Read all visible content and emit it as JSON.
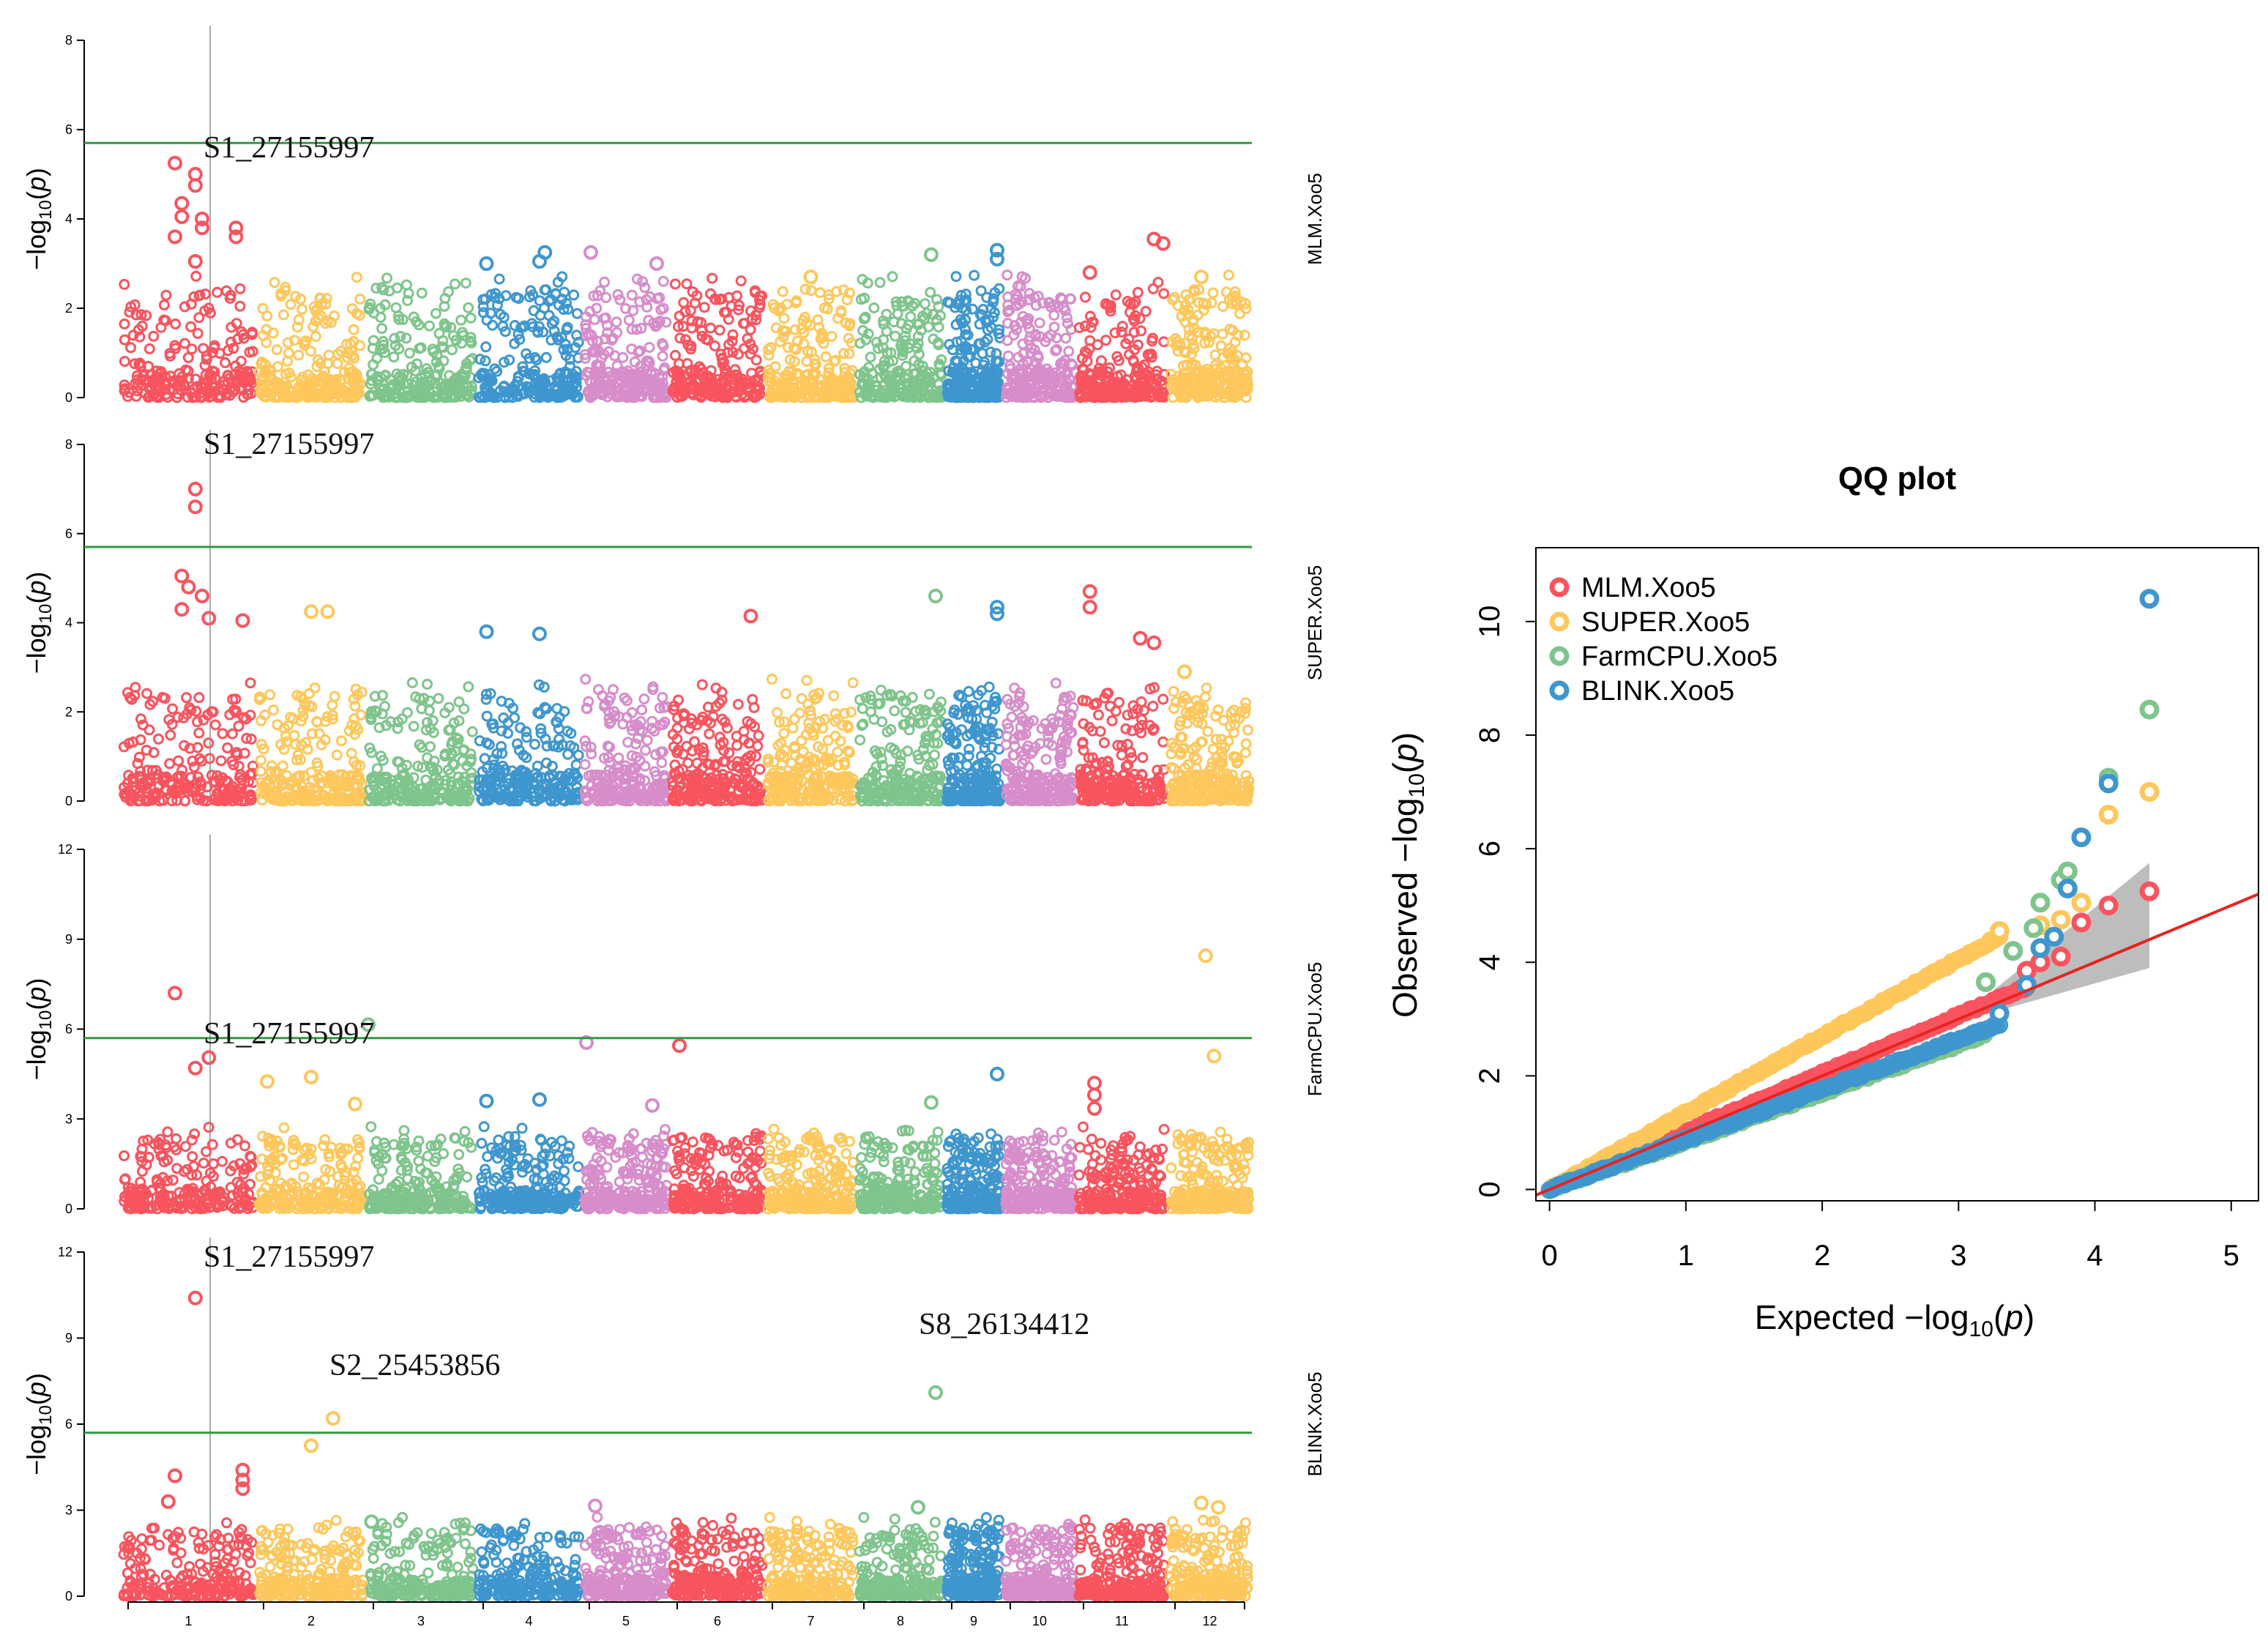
{
  "colors": {
    "chr": [
      "#F8545E",
      "#FDC75C",
      "#7FC48C",
      "#3F96CE",
      "#D68DCA",
      "#F8545E",
      "#FDC75C",
      "#7FC48C",
      "#3F96CE",
      "#D68DCA",
      "#F8545E",
      "#FDC75C"
    ],
    "threshold": "#2E9B3E",
    "highlight_line": "#AAAAAA",
    "qq_models": {
      "MLM.Xoo5": "#F8545E",
      "SUPER.Xoo5": "#FDC75C",
      "FarmCPU.Xoo5": "#7FC48C",
      "BLINK.Xoo5": "#3F96CE"
    },
    "qq_ref_line": "#E8231F",
    "qq_band": "#BDBDBD"
  },
  "chart_data": [
    {
      "type": "scatter",
      "subtype": "manhattan",
      "title": "",
      "model_label": "MLM.Xoo5",
      "ylabel": "-log10(p)",
      "yticks": [
        "0",
        "2",
        "4",
        "6",
        "8"
      ],
      "ylim": [
        0,
        8
      ],
      "threshold": 5.7,
      "highlight_snp": "S1_27155997",
      "annotations": [
        {
          "text": "S1_27155997",
          "chr": 1,
          "y": 5.25
        }
      ],
      "chromosomes": [
        "1",
        "2",
        "3",
        "4",
        "5",
        "6",
        "7",
        "8",
        "9",
        "10",
        "11",
        "12"
      ],
      "top_points": [
        {
          "chr": 1,
          "pos": 0.4,
          "y": 5.25
        },
        {
          "chr": 1,
          "pos": 0.55,
          "y": 5.0
        },
        {
          "chr": 1,
          "pos": 0.55,
          "y": 4.75
        },
        {
          "chr": 1,
          "pos": 0.45,
          "y": 4.35
        },
        {
          "chr": 1,
          "pos": 0.45,
          "y": 4.05
        },
        {
          "chr": 1,
          "pos": 0.6,
          "y": 4.0
        },
        {
          "chr": 1,
          "pos": 0.6,
          "y": 3.8
        },
        {
          "chr": 1,
          "pos": 0.85,
          "y": 3.8
        },
        {
          "chr": 1,
          "pos": 0.85,
          "y": 3.6
        },
        {
          "chr": 1,
          "pos": 0.4,
          "y": 3.6
        },
        {
          "chr": 1,
          "pos": 0.55,
          "y": 3.05
        },
        {
          "chr": 4,
          "pos": 0.65,
          "y": 3.25
        },
        {
          "chr": 4,
          "pos": 0.6,
          "y": 3.05
        },
        {
          "chr": 4,
          "pos": 0.1,
          "y": 3.0
        },
        {
          "chr": 5,
          "pos": 0.1,
          "y": 3.25
        },
        {
          "chr": 5,
          "pos": 0.85,
          "y": 3.0
        },
        {
          "chr": 9,
          "pos": 0.9,
          "y": 3.3
        },
        {
          "chr": 9,
          "pos": 0.9,
          "y": 3.1
        },
        {
          "chr": 8,
          "pos": 0.85,
          "y": 3.2
        },
        {
          "chr": 11,
          "pos": 0.85,
          "y": 3.55
        },
        {
          "chr": 11,
          "pos": 0.95,
          "y": 3.45
        },
        {
          "chr": 11,
          "pos": 0.15,
          "y": 2.8
        },
        {
          "chr": 7,
          "pos": 0.5,
          "y": 2.7
        },
        {
          "chr": 12,
          "pos": 0.4,
          "y": 2.7
        }
      ]
    },
    {
      "type": "scatter",
      "subtype": "manhattan",
      "model_label": "SUPER.Xoo5",
      "ylabel": "-log10(p)",
      "yticks": [
        "0",
        "2",
        "4",
        "6",
        "8"
      ],
      "ylim": [
        0,
        8
      ],
      "threshold": 5.7,
      "highlight_snp": "S1_27155997",
      "annotations": [
        {
          "text": "S1_27155997",
          "chr": 1,
          "y": 7.0
        }
      ],
      "chromosomes": [
        "1",
        "2",
        "3",
        "4",
        "5",
        "6",
        "7",
        "8",
        "9",
        "10",
        "11",
        "12"
      ],
      "top_points": [
        {
          "chr": 1,
          "pos": 0.55,
          "y": 7.0
        },
        {
          "chr": 1,
          "pos": 0.55,
          "y": 6.6
        },
        {
          "chr": 1,
          "pos": 0.45,
          "y": 5.05
        },
        {
          "chr": 1,
          "pos": 0.5,
          "y": 4.8
        },
        {
          "chr": 1,
          "pos": 0.6,
          "y": 4.6
        },
        {
          "chr": 1,
          "pos": 0.45,
          "y": 4.3
        },
        {
          "chr": 1,
          "pos": 0.65,
          "y": 4.1
        },
        {
          "chr": 1,
          "pos": 0.9,
          "y": 4.05
        },
        {
          "chr": 2,
          "pos": 0.5,
          "y": 4.25
        },
        {
          "chr": 2,
          "pos": 0.65,
          "y": 4.25
        },
        {
          "chr": 4,
          "pos": 0.1,
          "y": 3.8
        },
        {
          "chr": 4,
          "pos": 0.6,
          "y": 3.75
        },
        {
          "chr": 8,
          "pos": 0.9,
          "y": 4.6
        },
        {
          "chr": 9,
          "pos": 0.9,
          "y": 4.35
        },
        {
          "chr": 9,
          "pos": 0.9,
          "y": 4.2
        },
        {
          "chr": 6,
          "pos": 0.85,
          "y": 4.15
        },
        {
          "chr": 11,
          "pos": 0.15,
          "y": 4.7
        },
        {
          "chr": 11,
          "pos": 0.15,
          "y": 4.35
        },
        {
          "chr": 11,
          "pos": 0.7,
          "y": 3.65
        },
        {
          "chr": 11,
          "pos": 0.85,
          "y": 3.55
        },
        {
          "chr": 12,
          "pos": 0.2,
          "y": 2.9
        }
      ]
    },
    {
      "type": "scatter",
      "subtype": "manhattan",
      "model_label": "FarmCPU.Xoo5",
      "ylabel": "-log10(p)",
      "yticks": [
        "0",
        "3",
        "6",
        "9",
        "12"
      ],
      "ylim": [
        0,
        12
      ],
      "threshold": 5.7,
      "highlight_snp": "S1_27155997",
      "annotations": [
        {
          "text": "S1_27155997",
          "chr": 1,
          "y": 5.0
        }
      ],
      "chromosomes": [
        "1",
        "2",
        "3",
        "4",
        "5",
        "6",
        "7",
        "8",
        "9",
        "10",
        "11",
        "12"
      ],
      "top_points": [
        {
          "chr": 1,
          "pos": 0.4,
          "y": 7.2
        },
        {
          "chr": 1,
          "pos": 0.55,
          "y": 4.7
        },
        {
          "chr": 1,
          "pos": 0.65,
          "y": 5.05
        },
        {
          "chr": 2,
          "pos": 0.1,
          "y": 4.25
        },
        {
          "chr": 2,
          "pos": 0.5,
          "y": 4.4
        },
        {
          "chr": 2,
          "pos": 0.9,
          "y": 3.5
        },
        {
          "chr": 3,
          "pos": 0.02,
          "y": 6.15
        },
        {
          "chr": 5,
          "pos": 0.05,
          "y": 5.55
        },
        {
          "chr": 6,
          "pos": 0.1,
          "y": 5.45
        },
        {
          "chr": 4,
          "pos": 0.1,
          "y": 3.6
        },
        {
          "chr": 4,
          "pos": 0.6,
          "y": 3.65
        },
        {
          "chr": 5,
          "pos": 0.8,
          "y": 3.45
        },
        {
          "chr": 9,
          "pos": 0.9,
          "y": 4.5
        },
        {
          "chr": 8,
          "pos": 0.85,
          "y": 3.55
        },
        {
          "chr": 11,
          "pos": 0.2,
          "y": 4.2
        },
        {
          "chr": 11,
          "pos": 0.2,
          "y": 3.8
        },
        {
          "chr": 11,
          "pos": 0.2,
          "y": 3.35
        },
        {
          "chr": 12,
          "pos": 0.45,
          "y": 8.45
        },
        {
          "chr": 12,
          "pos": 0.55,
          "y": 5.1
        }
      ]
    },
    {
      "type": "scatter",
      "subtype": "manhattan",
      "model_label": "BLINK.Xoo5",
      "ylabel": "-log10(p)",
      "yticks": [
        "0",
        "3",
        "6",
        "9",
        "12"
      ],
      "ylim": [
        0,
        12
      ],
      "threshold": 5.7,
      "highlight_snp": "S1_27155997",
      "xticks": [
        "1",
        "2",
        "3",
        "4",
        "5",
        "6",
        "7",
        "8",
        "9",
        "10",
        "11",
        "12"
      ],
      "annotations": [
        {
          "text": "S1_27155997",
          "chr": 1,
          "y": 10.4
        },
        {
          "text": "S2_25453856",
          "chr": 2,
          "y": 6.2
        },
        {
          "text": "S8_26134412",
          "chr": 8,
          "y": 7.1
        }
      ],
      "chromosomes": [
        "1",
        "2",
        "3",
        "4",
        "5",
        "6",
        "7",
        "8",
        "9",
        "10",
        "11",
        "12"
      ],
      "top_points": [
        {
          "chr": 1,
          "pos": 0.55,
          "y": 10.4
        },
        {
          "chr": 2,
          "pos": 0.7,
          "y": 6.2
        },
        {
          "chr": 2,
          "pos": 0.5,
          "y": 5.25
        },
        {
          "chr": 8,
          "pos": 0.9,
          "y": 7.1
        },
        {
          "chr": 1,
          "pos": 0.4,
          "y": 4.2
        },
        {
          "chr": 1,
          "pos": 0.9,
          "y": 4.4
        },
        {
          "chr": 1,
          "pos": 0.9,
          "y": 4.05
        },
        {
          "chr": 1,
          "pos": 0.9,
          "y": 3.75
        },
        {
          "chr": 1,
          "pos": 0.35,
          "y": 3.3
        },
        {
          "chr": 8,
          "pos": 0.7,
          "y": 3.1
        },
        {
          "chr": 5,
          "pos": 0.15,
          "y": 3.15
        },
        {
          "chr": 12,
          "pos": 0.4,
          "y": 3.25
        },
        {
          "chr": 12,
          "pos": 0.6,
          "y": 3.1
        },
        {
          "chr": 3,
          "pos": 0.05,
          "y": 2.6
        }
      ]
    },
    {
      "type": "scatter",
      "subtype": "qq",
      "title": "QQ plot",
      "xlabel": "Expected  -log10(p)",
      "ylabel": "Observed  -log10(p)",
      "xlim": [
        -0.1,
        5.2
      ],
      "ylim": [
        -0.2,
        11.3
      ],
      "xticks": [
        "0",
        "1",
        "2",
        "3",
        "4",
        "5"
      ],
      "yticks": [
        "0",
        "2",
        "4",
        "6",
        "8",
        "10"
      ],
      "legend_position": "top-left",
      "series": [
        {
          "name": "MLM.Xoo5",
          "slope": 1.02,
          "tail": [
            [
              3.5,
              3.85
            ],
            [
              3.6,
              4.0
            ],
            [
              3.75,
              4.1
            ],
            [
              3.9,
              4.7
            ],
            [
              4.1,
              5.0
            ],
            [
              4.4,
              5.25
            ]
          ]
        },
        {
          "name": "SUPER.Xoo5",
          "slope": 1.35,
          "tail": [
            [
              3.3,
              4.55
            ],
            [
              3.6,
              4.65
            ],
            [
              3.75,
              4.75
            ],
            [
              3.9,
              5.05
            ],
            [
              4.1,
              6.6
            ],
            [
              4.4,
              7.0
            ]
          ]
        },
        {
          "name": "FarmCPU.Xoo5",
          "slope": 0.85,
          "tail": [
            [
              3.2,
              3.65
            ],
            [
              3.4,
              4.2
            ],
            [
              3.55,
              4.6
            ],
            [
              3.6,
              5.05
            ],
            [
              3.75,
              5.45
            ],
            [
              3.8,
              5.6
            ],
            [
              4.1,
              7.25
            ],
            [
              4.4,
              8.45
            ]
          ]
        },
        {
          "name": "BLINK.Xoo5",
          "slope": 0.88,
          "tail": [
            [
              3.3,
              3.1
            ],
            [
              3.5,
              3.6
            ],
            [
              3.6,
              4.25
            ],
            [
              3.7,
              4.45
            ],
            [
              3.8,
              5.3
            ],
            [
              3.9,
              6.2
            ],
            [
              4.1,
              7.15
            ],
            [
              4.4,
              10.4
            ]
          ]
        }
      ],
      "reference_line": {
        "slope": 1.0,
        "intercept": 0.0
      }
    }
  ]
}
